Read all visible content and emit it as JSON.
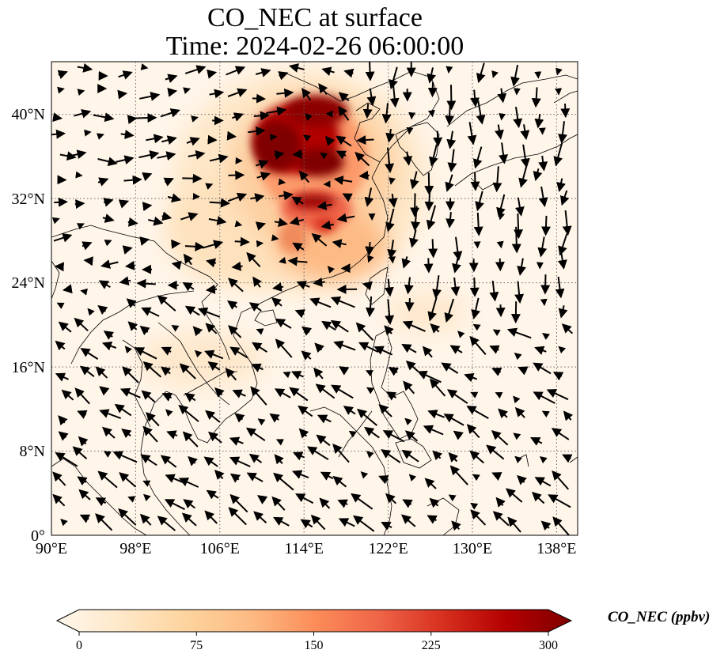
{
  "title": {
    "line1": "CO_NEC at surface",
    "line2": "Time: 2024-02-26 06:00:00"
  },
  "map": {
    "extent": {
      "lon": [
        90,
        140
      ],
      "lat": [
        0,
        45
      ]
    },
    "longitude_ticks": [
      "90°E",
      "98°E",
      "106°E",
      "114°E",
      "122°E",
      "130°E",
      "138°E"
    ],
    "latitude_ticks": [
      "40°N",
      "32°N",
      "24°N",
      "16°N",
      "8°N",
      "0°"
    ],
    "gridlines": "dotted"
  },
  "colorbar": {
    "label": "CO_NEC (ppbv)",
    "ticks": [
      "0",
      "75",
      "150",
      "225",
      "300"
    ],
    "range": [
      0,
      300
    ],
    "extend": "both",
    "colormap": [
      "#fff7ec",
      "#fee8c8",
      "#fdd49e",
      "#fdbb84",
      "#fc8d59",
      "#ef6548",
      "#d7301f",
      "#b30000",
      "#7f0000"
    ]
  }
}
